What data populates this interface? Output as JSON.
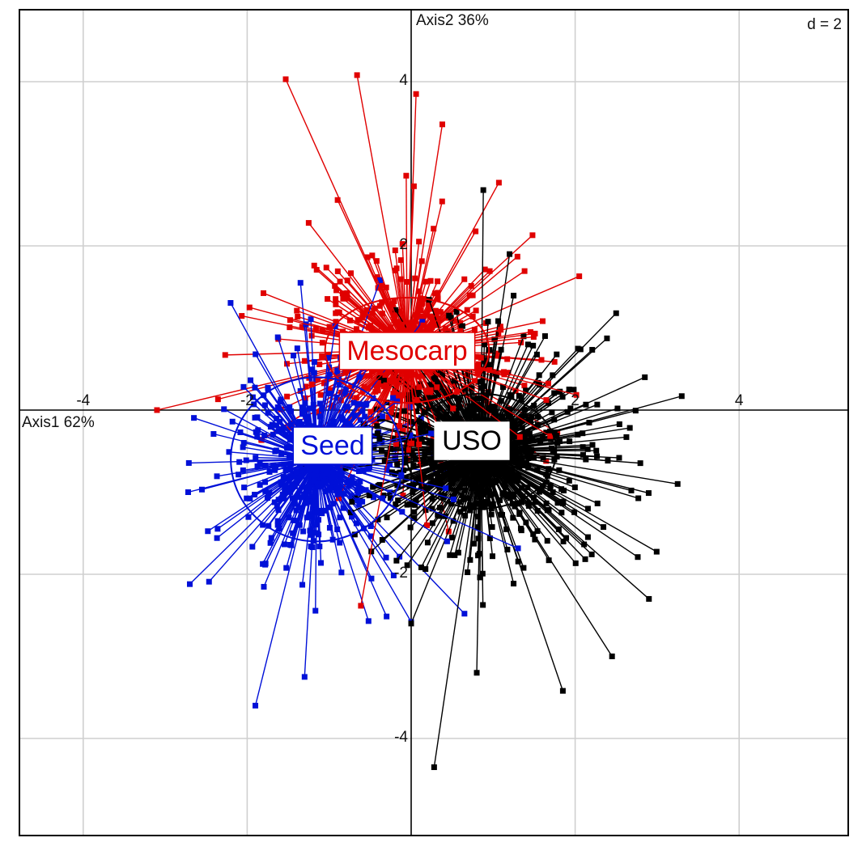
{
  "chart_data": {
    "type": "scatter",
    "axes": {
      "x": {
        "label": "Axis1",
        "percent": "62%",
        "ticks": [
          "-4",
          "-2",
          "2",
          "4"
        ]
      },
      "y": {
        "label": "Axis2",
        "percent": "36%",
        "ticks": [
          "4",
          "2",
          "-2",
          "-4"
        ]
      }
    },
    "xlim": [
      -4.8,
      5.4
    ],
    "ylim": [
      -5.2,
      4.9
    ],
    "grid": true,
    "grid_step": 2,
    "scale_label": "d = 2",
    "groups": [
      {
        "name": "Mesocarp",
        "color": "#e00000",
        "centroid": [
          -0.05,
          0.73
        ],
        "ellipse": {
          "sx": 1.0,
          "sy": 0.64
        },
        "n_points": 620,
        "spread": [
          0.75,
          0.7
        ],
        "extremes": [
          [
            -1.53,
            4.03
          ],
          [
            -0.66,
            4.08
          ],
          [
            0.06,
            3.85
          ],
          [
            0.38,
            3.48
          ],
          [
            1.07,
            2.77
          ],
          [
            -1.25,
            2.28
          ],
          [
            1.48,
            2.13
          ],
          [
            2.05,
            1.63
          ],
          [
            -3.1,
            -0.0
          ]
        ]
      },
      {
        "name": "Seed",
        "color": "#0010d8",
        "centroid": [
          -1.15,
          -0.6
        ],
        "ellipse": {
          "sx": 1.05,
          "sy": 1.0
        },
        "n_points": 620,
        "spread": [
          0.6,
          0.68
        ],
        "extremes": [
          [
            -2.72,
            -1.0
          ],
          [
            -2.7,
            -2.12
          ],
          [
            -1.9,
            -3.6
          ],
          [
            -1.3,
            -3.25
          ],
          [
            -0.52,
            -2.57
          ],
          [
            0.0,
            -2.58
          ],
          [
            0.65,
            -2.48
          ],
          [
            -1.35,
            1.55
          ]
        ]
      },
      {
        "name": "USO",
        "color": "#000000",
        "centroid": [
          0.85,
          -0.5
        ],
        "ellipse": {
          "sx": 0.92,
          "sy": 0.7
        },
        "n_points": 900,
        "spread": [
          0.75,
          0.7
        ],
        "extremes": [
          [
            0.28,
            -4.35
          ],
          [
            0.0,
            -2.6
          ],
          [
            0.8,
            -3.2
          ],
          [
            1.85,
            -3.42
          ],
          [
            2.45,
            -3.0
          ],
          [
            2.9,
            -2.3
          ],
          [
            3.25,
            -0.9
          ],
          [
            3.3,
            0.17
          ],
          [
            2.5,
            1.18
          ],
          [
            0.88,
            2.68
          ],
          [
            1.2,
            1.9
          ],
          [
            2.85,
            0.4
          ]
        ]
      }
    ]
  }
}
